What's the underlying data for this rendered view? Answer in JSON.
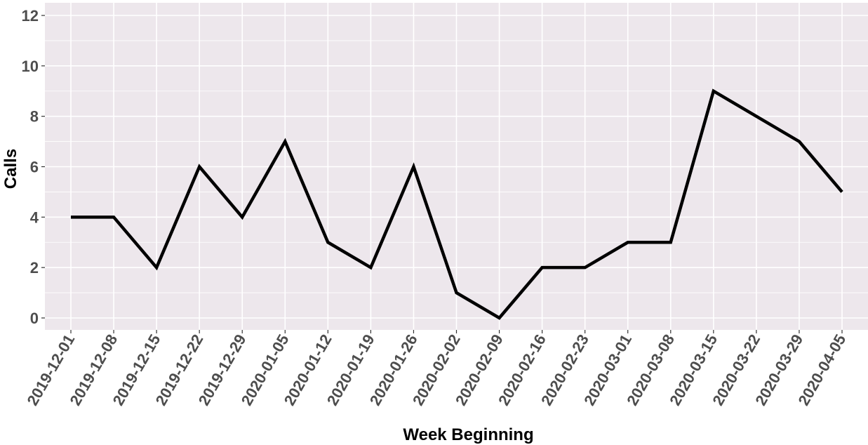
{
  "chart_data": {
    "type": "line",
    "title": "",
    "xlabel": "Week Beginning",
    "ylabel": "Calls",
    "ylim": [
      0,
      12
    ],
    "y_ticks": [
      0,
      2,
      4,
      6,
      8,
      10,
      12
    ],
    "y_tick_labels": [
      "0",
      "2",
      "4",
      "6",
      "8",
      "10",
      "12"
    ],
    "grid": true,
    "legend": "none",
    "x": [
      "2019-12-01",
      "2019-12-08",
      "2019-12-15",
      "2019-12-22",
      "2019-12-29",
      "2020-01-05",
      "2020-01-12",
      "2020-01-19",
      "2020-01-26",
      "2020-02-02",
      "2020-02-09",
      "2020-02-16",
      "2020-02-23",
      "2020-03-01",
      "2020-03-08",
      "2020-03-15",
      "2020-03-22",
      "2020-03-29",
      "2020-04-05"
    ],
    "series": [
      {
        "values": [
          4,
          4,
          2,
          6,
          4,
          7,
          3,
          2,
          6,
          1,
          0,
          2,
          2,
          3,
          3,
          9,
          8,
          7,
          5
        ]
      }
    ],
    "colors": {
      "panel": "#ede7ec",
      "grid": "#ffffff",
      "line": "#000000",
      "tick_text": "#4d4d4d"
    }
  }
}
